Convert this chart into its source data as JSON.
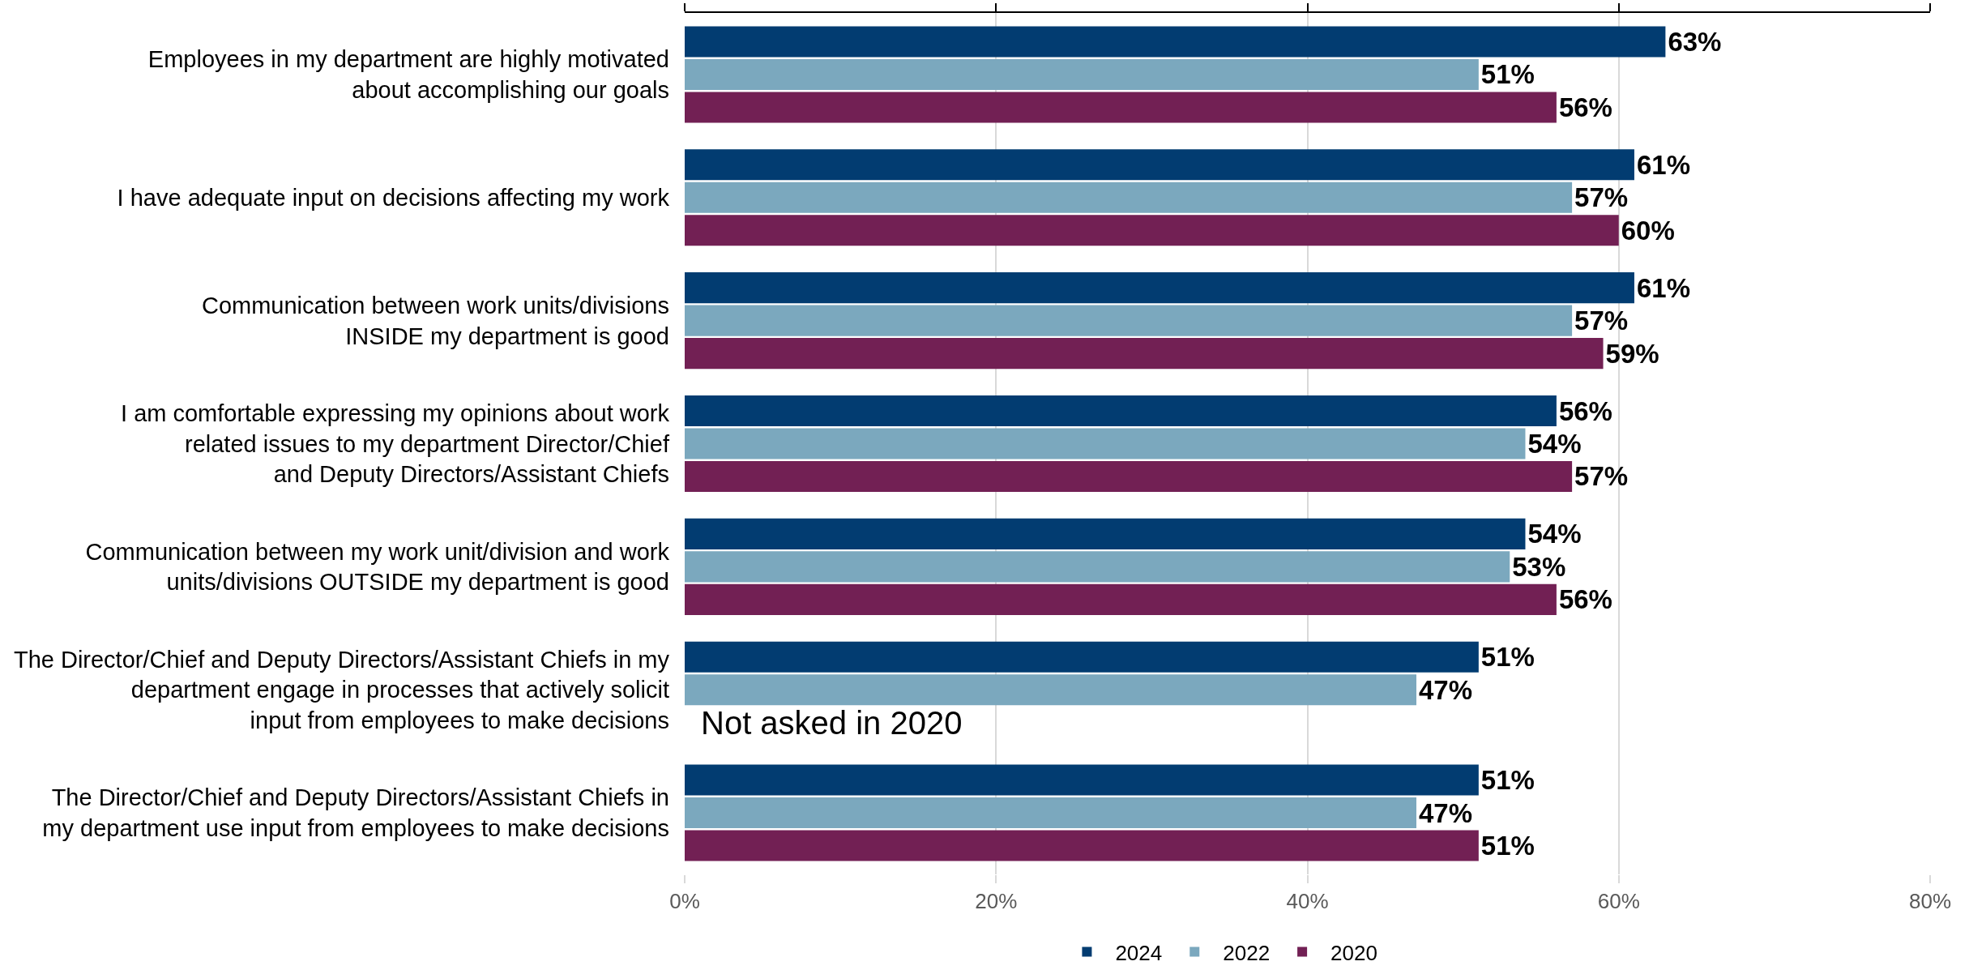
{
  "chart_data": {
    "type": "bar",
    "orientation": "horizontal",
    "categories": [
      "Employees in my department are highly motivated\nabout accomplishing our goals",
      "I have adequate input on decisions affecting my work",
      "Communication between work units/divisions\nINSIDE my department is good",
      "I am comfortable expressing my opinions about work\nrelated issues to my department Director/Chief\nand Deputy Directors/Assistant Chiefs",
      "Communication between my work unit/division and work\nunits/divisions OUTSIDE my department is good",
      "The Director/Chief and Deputy Directors/Assistant Chiefs in my\ndepartment engage in processes that actively solicit\ninput from employees to make decisions",
      "The Director/Chief and Deputy Directors/Assistant Chiefs in\nmy department use input from employees to make decisions"
    ],
    "series": [
      {
        "name": "2024",
        "color": "#023c71",
        "values": [
          63,
          61,
          61,
          56,
          54,
          51,
          51
        ],
        "value_labels": [
          "63%",
          "61%",
          "61%",
          "56%",
          "54%",
          "51%",
          "51%"
        ]
      },
      {
        "name": "2022",
        "color": "#7ba8be",
        "values": [
          51,
          57,
          57,
          54,
          53,
          47,
          47
        ],
        "value_labels": [
          "51%",
          "57%",
          "57%",
          "54%",
          "53%",
          "47%",
          "47%"
        ]
      },
      {
        "name": "2020",
        "color": "#722054",
        "values": [
          56,
          60,
          59,
          57,
          56,
          null,
          51
        ],
        "value_labels": [
          "56%",
          "60%",
          "59%",
          "57%",
          "56%",
          null,
          "51%"
        ]
      }
    ],
    "xlim": [
      0,
      80
    ],
    "xticks": [
      {
        "value": 0,
        "label": "0%"
      },
      {
        "value": 20,
        "label": "20%"
      },
      {
        "value": 40,
        "label": "40%"
      },
      {
        "value": 60,
        "label": "60%"
      },
      {
        "value": 80,
        "label": "80%"
      }
    ],
    "annotations": [
      "Not asked in 2020"
    ],
    "grid": "x",
    "legend": "bottom"
  }
}
